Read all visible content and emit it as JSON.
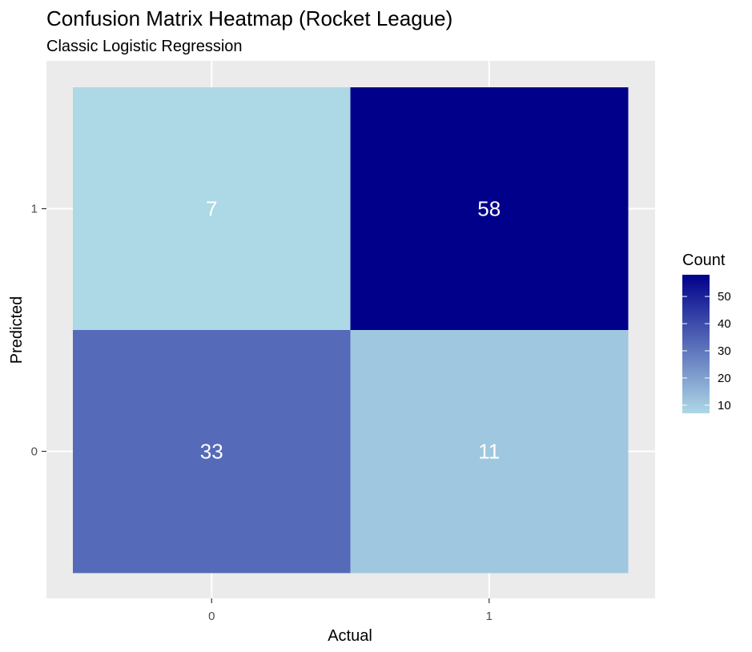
{
  "chart_data": {
    "type": "heatmap",
    "title": "Confusion Matrix Heatmap (Rocket League)",
    "subtitle": "Classic Logistic Regression",
    "xlabel": "Actual",
    "ylabel": "Predicted",
    "x_categories": [
      "0",
      "1"
    ],
    "y_categories": [
      "0",
      "1"
    ],
    "cells": [
      {
        "x": "0",
        "y": "1",
        "value": 7
      },
      {
        "x": "1",
        "y": "1",
        "value": 58
      },
      {
        "x": "0",
        "y": "0",
        "value": 33
      },
      {
        "x": "1",
        "y": "0",
        "value": 11
      }
    ],
    "legend": {
      "title": "Count",
      "placement": "right",
      "ticks": [
        10,
        20,
        30,
        40,
        50
      ],
      "range": [
        7,
        58
      ],
      "low_color": "#ADD8E6",
      "high_color": "#00008B"
    },
    "colors": {
      "panel_background": "#EBEBEB",
      "grid": "#FFFFFF"
    },
    "grid": true
  }
}
